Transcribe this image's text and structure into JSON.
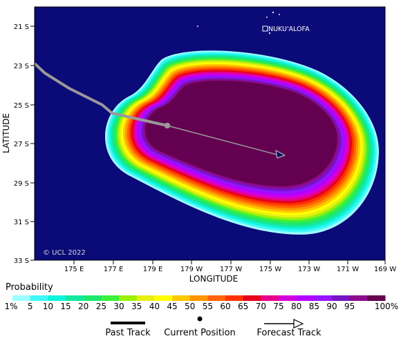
{
  "map": {
    "place_label": "NUKU'ALOFA",
    "copyright": "© UCL 2022",
    "x_axis_title": "LONGITUDE",
    "y_axis_title": "LATITUDE",
    "lat_ticks": [
      "21 S",
      "23 S",
      "25 S",
      "27 S",
      "29 S",
      "31 S",
      "33 S"
    ],
    "lon_ticks": [
      "175 E",
      "177 E",
      "179 E",
      "179 W",
      "177 W",
      "175 W",
      "173 W",
      "171 W",
      "169 W"
    ],
    "ocean_color": "#0a0a78",
    "track_color": "#999999"
  },
  "legend": {
    "title": "Probability",
    "levels": [
      {
        "label": "1%",
        "color": "#9cffff"
      },
      {
        "label": "5",
        "color": "#3ff8f8"
      },
      {
        "label": "10",
        "color": "#0ff4dc"
      },
      {
        "label": "15",
        "color": "#14e8a0"
      },
      {
        "label": "20",
        "color": "#1ee86c"
      },
      {
        "label": "25",
        "color": "#3cf03c"
      },
      {
        "label": "30",
        "color": "#9cf00a"
      },
      {
        "label": "35",
        "color": "#e6f014"
      },
      {
        "label": "40",
        "color": "#ffff00"
      },
      {
        "label": "45",
        "color": "#ffc800"
      },
      {
        "label": "50",
        "color": "#ff9600"
      },
      {
        "label": "55",
        "color": "#ff6400"
      },
      {
        "label": "60",
        "color": "#ff3200"
      },
      {
        "label": "65",
        "color": "#e6001e"
      },
      {
        "label": "70",
        "color": "#e6008c"
      },
      {
        "label": "75",
        "color": "#d200dc"
      },
      {
        "label": "80",
        "color": "#b400ff"
      },
      {
        "label": "85",
        "color": "#9614ff"
      },
      {
        "label": "90",
        "color": "#7814c8"
      },
      {
        "label": "95",
        "color": "#8c0a8c"
      },
      {
        "label": "100%",
        "color": "#640050"
      }
    ]
  },
  "key": {
    "past_track": "Past Track",
    "current_position": "Current Position",
    "forecast_track": "Forecast Track"
  }
}
